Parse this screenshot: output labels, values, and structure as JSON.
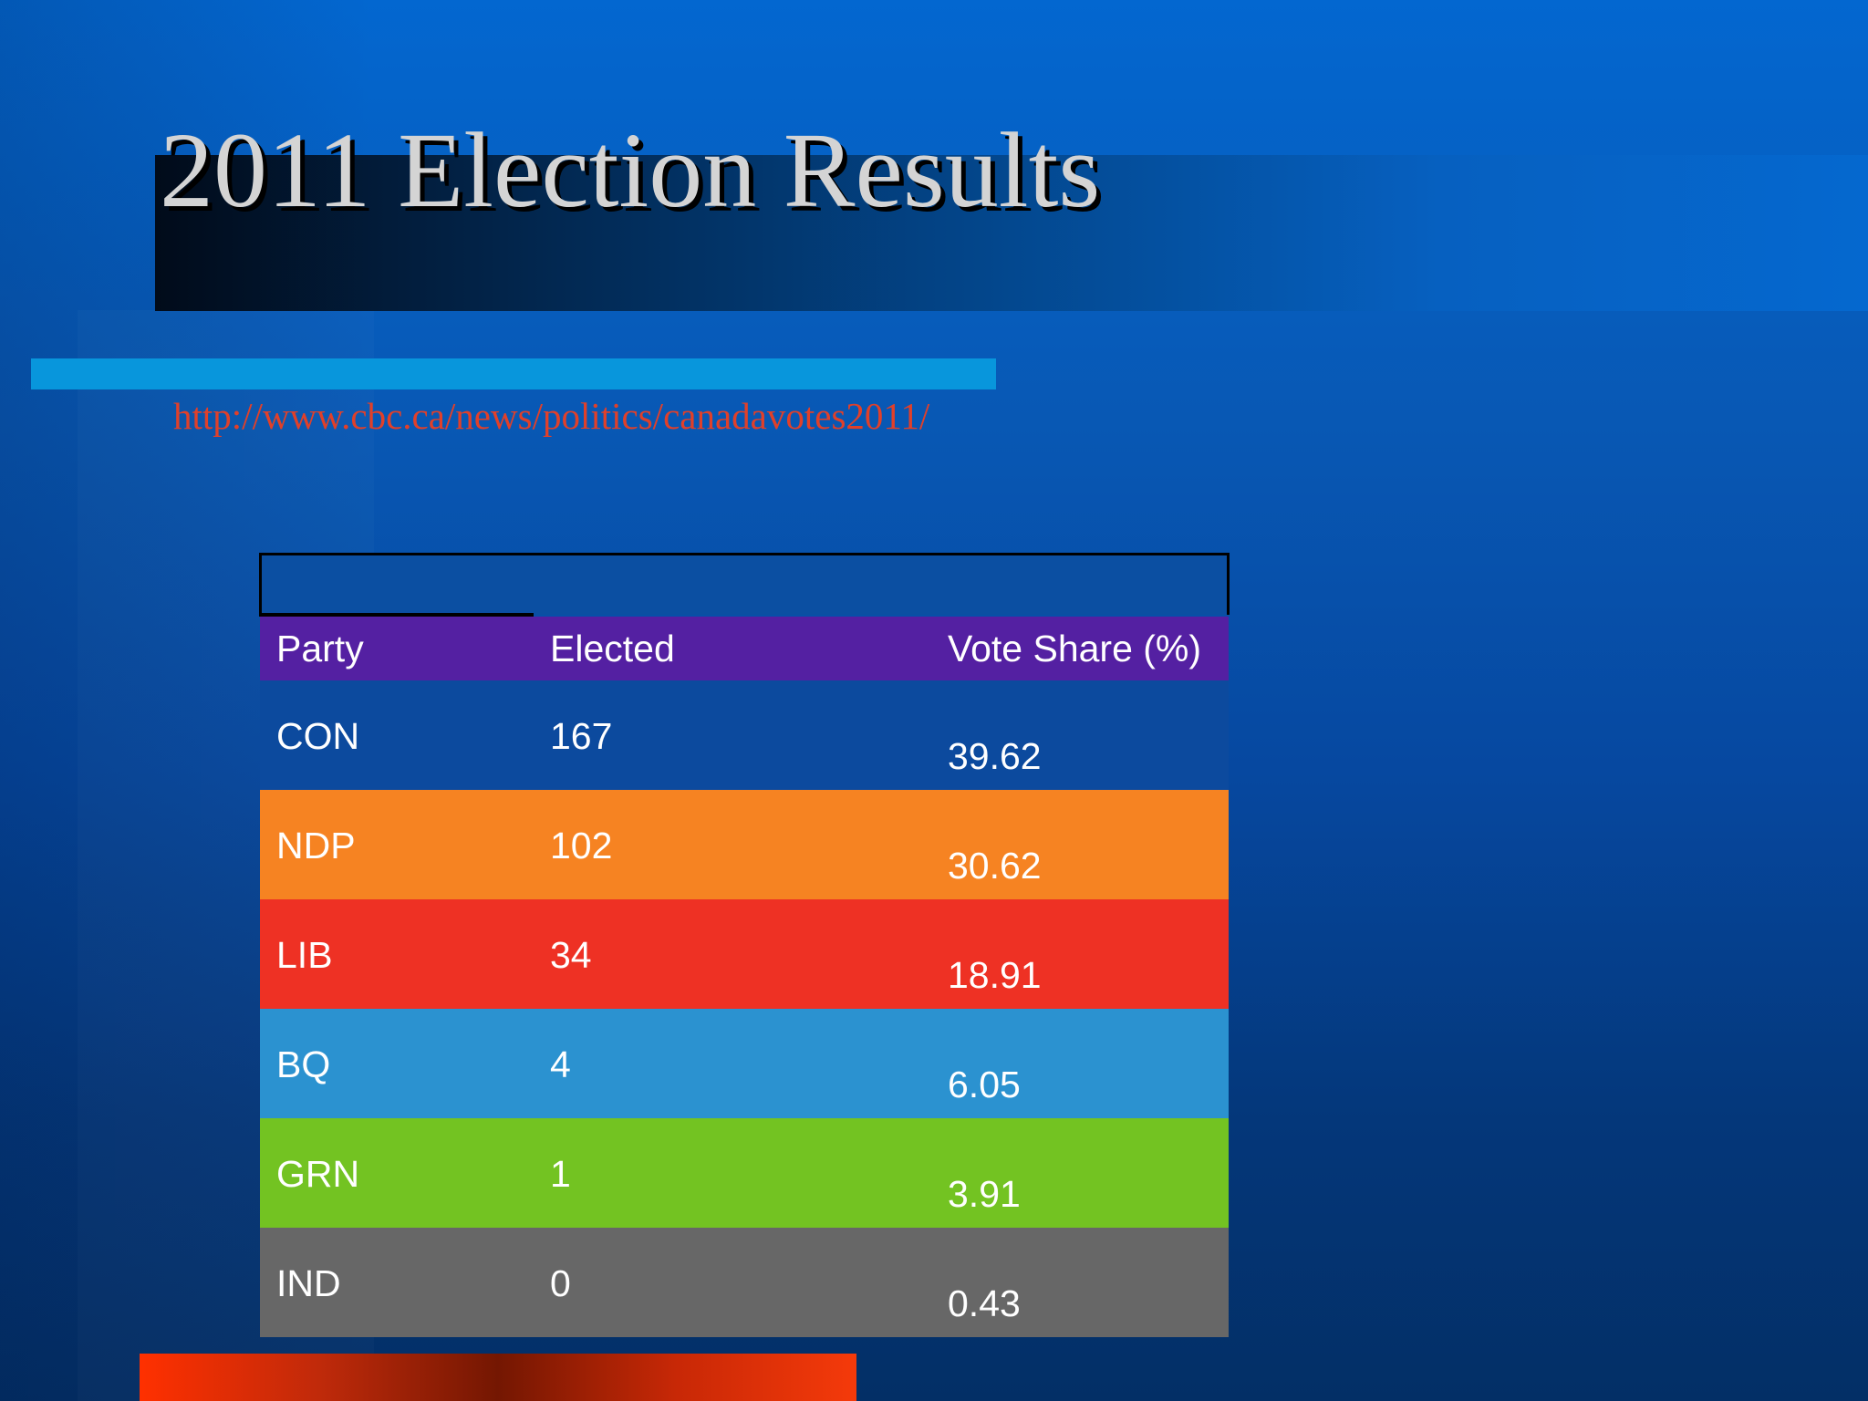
{
  "slide": {
    "title": "2011 Election Results",
    "source_url": "http://www.cbc.ca/news/politics/canadavotes2011/"
  },
  "table": {
    "headers": {
      "party": "Party",
      "elected": "Elected",
      "vote_share": "Vote Share (%)"
    },
    "rows": [
      {
        "party": "CON",
        "elected": "167",
        "vote_share": "39.62",
        "color": "#0c4a9e"
      },
      {
        "party": "NDP",
        "elected": "102",
        "vote_share": "30.62",
        "color": "#f68322"
      },
      {
        "party": "LIB",
        "elected": "34",
        "vote_share": "18.91",
        "color": "#ee3124"
      },
      {
        "party": "BQ",
        "elected": "4",
        "vote_share": "6.05",
        "color": "#2b92d0"
      },
      {
        "party": "GRN",
        "elected": "1",
        "vote_share": "3.91",
        "color": "#73c322"
      },
      {
        "party": "IND",
        "elected": "0",
        "vote_share": "0.43",
        "color": "#676767"
      }
    ]
  },
  "colors": {
    "header_row": "#5420a2",
    "title_text": "#d4d4d4",
    "link_text": "#e0402a",
    "accent_bar": "#0896dc"
  }
}
